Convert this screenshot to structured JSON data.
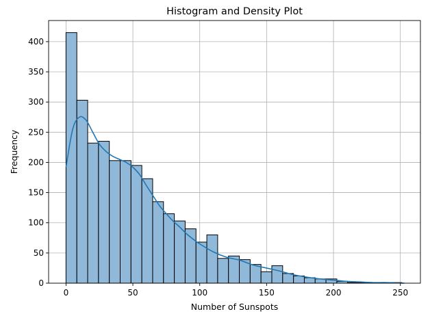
{
  "chart_data": {
    "type": "bar",
    "subtype": "histogram-with-density",
    "title": "Histogram and Density Plot",
    "xlabel": "Number of Sunspots",
    "ylabel": "Frequency",
    "xlim": [
      -13,
      265
    ],
    "ylim": [
      0,
      435
    ],
    "xticks": [
      0,
      50,
      100,
      150,
      200,
      250
    ],
    "yticks": [
      0,
      50,
      100,
      150,
      200,
      250,
      300,
      350,
      400
    ],
    "grid": true,
    "bin_width": 8.1,
    "bin_start": 0,
    "bins": [
      {
        "x0": 0.0,
        "x1": 8.1,
        "count": 415
      },
      {
        "x0": 8.1,
        "x1": 16.2,
        "count": 303
      },
      {
        "x0": 16.2,
        "x1": 24.3,
        "count": 232
      },
      {
        "x0": 24.3,
        "x1": 32.4,
        "count": 235
      },
      {
        "x0": 32.4,
        "x1": 40.5,
        "count": 203
      },
      {
        "x0": 40.5,
        "x1": 48.6,
        "count": 203
      },
      {
        "x0": 48.6,
        "x1": 56.7,
        "count": 195
      },
      {
        "x0": 56.7,
        "x1": 64.8,
        "count": 173
      },
      {
        "x0": 64.8,
        "x1": 72.9,
        "count": 135
      },
      {
        "x0": 72.9,
        "x1": 81.0,
        "count": 115
      },
      {
        "x0": 81.0,
        "x1": 89.1,
        "count": 103
      },
      {
        "x0": 89.1,
        "x1": 97.2,
        "count": 90
      },
      {
        "x0": 97.2,
        "x1": 105.3,
        "count": 68
      },
      {
        "x0": 105.3,
        "x1": 113.4,
        "count": 80
      },
      {
        "x0": 113.4,
        "x1": 121.5,
        "count": 41
      },
      {
        "x0": 121.5,
        "x1": 129.6,
        "count": 45
      },
      {
        "x0": 129.6,
        "x1": 137.7,
        "count": 39
      },
      {
        "x0": 137.7,
        "x1": 145.8,
        "count": 31
      },
      {
        "x0": 145.8,
        "x1": 153.9,
        "count": 19
      },
      {
        "x0": 153.9,
        "x1": 162.0,
        "count": 29
      },
      {
        "x0": 162.0,
        "x1": 170.1,
        "count": 16
      },
      {
        "x0": 170.1,
        "x1": 178.2,
        "count": 12
      },
      {
        "x0": 178.2,
        "x1": 186.3,
        "count": 9
      },
      {
        "x0": 186.3,
        "x1": 194.4,
        "count": 7
      },
      {
        "x0": 194.4,
        "x1": 202.5,
        "count": 7
      },
      {
        "x0": 202.5,
        "x1": 210.6,
        "count": 3
      },
      {
        "x0": 210.6,
        "x1": 218.7,
        "count": 1
      },
      {
        "x0": 218.7,
        "x1": 226.8,
        "count": 1
      },
      {
        "x0": 226.8,
        "x1": 234.9,
        "count": 1
      },
      {
        "x0": 234.9,
        "x1": 243.0,
        "count": 1
      },
      {
        "x0": 243.0,
        "x1": 251.1,
        "count": 1
      }
    ],
    "density_curve": {
      "x": [
        0,
        5,
        10,
        15,
        20,
        25,
        30,
        35,
        40,
        45,
        50,
        55,
        60,
        65,
        70,
        75,
        80,
        85,
        90,
        95,
        100,
        110,
        120,
        130,
        140,
        150,
        160,
        170,
        180,
        190,
        200,
        210,
        220,
        230,
        240,
        253
      ],
      "y": [
        192,
        255,
        275,
        270,
        250,
        230,
        218,
        210,
        205,
        200,
        192,
        180,
        162,
        145,
        128,
        115,
        103,
        93,
        82,
        73,
        65,
        52,
        43,
        38,
        30,
        25,
        20,
        14,
        10,
        7,
        5,
        3,
        2,
        1,
        1,
        0
      ]
    },
    "colors": {
      "bar_fill": "#8fb8d9",
      "bar_edge": "#000000",
      "density_line": "#1f77b4",
      "grid": "#b0b0b0"
    }
  }
}
